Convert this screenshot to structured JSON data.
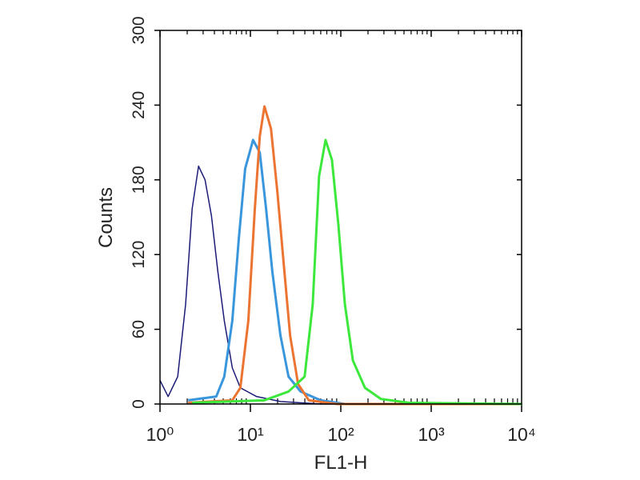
{
  "chart_data": {
    "type": "line",
    "xlabel": "FL1-H",
    "ylabel": "Counts",
    "xscale": "log",
    "xlim": [
      1,
      10000
    ],
    "ylim": [
      0,
      300
    ],
    "xticks": [
      {
        "value": 1,
        "label": "10⁰"
      },
      {
        "value": 10,
        "label": "10¹"
      },
      {
        "value": 100,
        "label": "10²"
      },
      {
        "value": 1000,
        "label": "10³"
      },
      {
        "value": 10000,
        "label": "10⁴"
      }
    ],
    "yticks": [
      0,
      60,
      120,
      180,
      240,
      300
    ],
    "series": [
      {
        "color": "#1c1c78",
        "width": 1.5,
        "x": [
          1.0,
          1.23,
          1.57,
          1.92,
          2.27,
          2.67,
          3.15,
          3.71,
          4.37,
          5.14,
          6.31,
          7.74,
          11.7,
          21.5,
          60,
          10000
        ],
        "values": [
          19,
          6,
          22,
          80,
          157,
          191,
          180,
          151,
          106,
          67,
          29,
          13,
          6,
          2,
          0,
          0
        ]
      },
      {
        "color": "#3a96dc",
        "width": 3,
        "x": [
          2.05,
          4.19,
          5.14,
          6.31,
          7.43,
          8.75,
          10.7,
          12.7,
          14.9,
          17.5,
          21.5,
          26.4,
          35.9,
          60,
          111,
          10000
        ],
        "values": [
          3,
          6,
          22,
          67,
          132,
          189,
          212,
          202,
          157,
          106,
          55,
          22,
          10,
          3,
          0,
          0
        ]
      },
      {
        "color": "#ec7432",
        "width": 3,
        "x": [
          2.05,
          6.31,
          7.74,
          9.49,
          11.2,
          12.7,
          14.3,
          16.9,
          19.9,
          23.4,
          27.5,
          33.7,
          44.3,
          90,
          10000
        ],
        "values": [
          1,
          3,
          13,
          67,
          157,
          215,
          239,
          221,
          170,
          112,
          55,
          16,
          3,
          0,
          0
        ]
      },
      {
        "color": "#3be83b",
        "width": 3,
        "x": [
          2.27,
          14.3,
          26.4,
          39.8,
          48.9,
          57.5,
          67.8,
          79.8,
          94,
          111,
          136,
          185,
          278,
          570,
          10000
        ],
        "values": [
          1,
          3,
          10,
          22,
          80,
          183,
          212,
          196,
          144,
          80,
          35,
          13,
          4,
          1,
          0
        ]
      }
    ]
  }
}
